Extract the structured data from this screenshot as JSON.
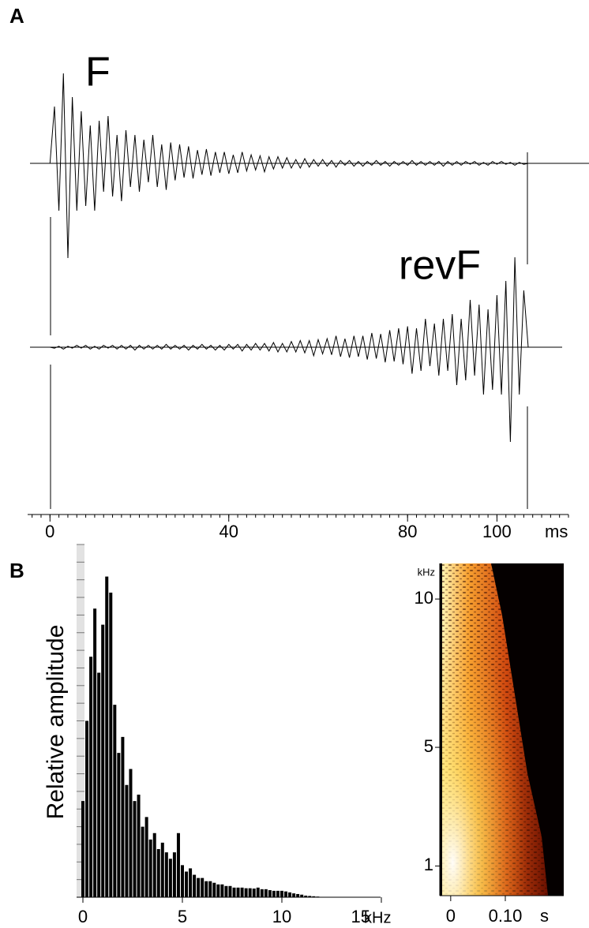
{
  "chart_data": [
    {
      "type": "waveform",
      "panel": "A",
      "x": [
        0,
        1,
        2,
        3,
        4,
        5,
        6,
        7,
        8,
        9,
        10,
        11,
        12,
        13,
        14,
        15,
        16,
        17,
        18,
        19,
        20,
        21,
        22,
        23,
        24,
        25,
        26,
        27,
        28,
        29,
        30,
        31,
        32,
        33,
        34,
        35,
        36,
        37,
        38,
        39,
        40,
        41,
        42,
        43,
        44,
        45,
        46,
        47,
        48,
        49,
        50,
        51,
        52,
        53,
        54,
        55,
        56,
        57,
        58,
        59,
        60,
        61,
        62,
        63,
        64,
        65,
        66,
        67,
        68,
        69,
        70,
        71,
        72,
        73,
        74,
        75,
        76,
        77,
        78,
        79,
        80,
        81,
        82,
        83,
        84,
        85,
        86,
        87,
        88,
        89,
        90,
        91,
        92,
        93,
        94,
        95,
        96,
        97,
        98,
        99,
        100,
        101,
        102,
        103,
        104,
        105,
        106,
        107
      ],
      "series": [
        {
          "name": "F",
          "color": "#000000",
          "values": [
            0,
            0.6,
            -0.5,
            0.95,
            -1.0,
            0.7,
            -0.5,
            0.55,
            -0.45,
            0.4,
            -0.5,
            0.45,
            -0.3,
            0.5,
            -0.35,
            0.3,
            -0.4,
            0.35,
            -0.25,
            0.3,
            -0.3,
            0.25,
            -0.2,
            0.3,
            -0.25,
            0.2,
            -0.28,
            0.22,
            -0.18,
            0.2,
            -0.15,
            0.18,
            -0.16,
            0.14,
            -0.12,
            0.15,
            -0.13,
            0.12,
            -0.1,
            0.12,
            -0.11,
            0.09,
            -0.1,
            0.12,
            -0.08,
            0.09,
            -0.07,
            0.08,
            -0.09,
            0.07,
            -0.06,
            0.07,
            -0.05,
            0.06,
            -0.05,
            0.04,
            -0.05,
            0.05,
            -0.04,
            0.04,
            -0.03,
            0.04,
            -0.03,
            0.03,
            -0.04,
            0.03,
            -0.02,
            0.03,
            -0.03,
            0.02,
            -0.03,
            0.02,
            -0.02,
            0.03,
            -0.02,
            0.02,
            -0.03,
            0.02,
            -0.02,
            0.02,
            -0.02,
            0.03,
            -0.02,
            0.02,
            -0.02,
            0.02,
            -0.02,
            0.02,
            -0.03,
            0.02,
            -0.02,
            0.02,
            -0.02,
            0.02,
            -0.01,
            0.02,
            -0.02,
            0.01,
            -0.02,
            0.02,
            -0.01,
            0.02,
            -0.01,
            0.01,
            -0.02,
            0.01,
            -0.01,
            0
          ]
        },
        {
          "name": "revF",
          "color": "#000000",
          "values": [
            0,
            -0.01,
            0.01,
            -0.02,
            0.01,
            -0.01,
            0.02,
            -0.01,
            0.02,
            -0.02,
            0.01,
            -0.02,
            0.02,
            -0.01,
            0.02,
            -0.02,
            0.02,
            -0.02,
            0.02,
            -0.03,
            0.02,
            -0.02,
            0.02,
            -0.02,
            0.02,
            -0.02,
            0.03,
            -0.02,
            0.02,
            -0.02,
            0.02,
            -0.03,
            0.02,
            -0.02,
            0.03,
            -0.02,
            0.02,
            -0.03,
            0.02,
            -0.03,
            0.03,
            -0.02,
            0.03,
            -0.04,
            0.03,
            -0.03,
            0.04,
            -0.03,
            0.04,
            -0.04,
            0.05,
            -0.05,
            0.04,
            -0.05,
            0.06,
            -0.05,
            0.07,
            -0.06,
            0.07,
            -0.09,
            0.08,
            -0.07,
            0.09,
            -0.08,
            0.12,
            -0.1,
            0.09,
            -0.11,
            0.12,
            -0.1,
            0.12,
            -0.13,
            0.15,
            -0.12,
            0.14,
            -0.16,
            0.18,
            -0.15,
            0.2,
            -0.18,
            0.22,
            -0.28,
            0.2,
            -0.25,
            0.3,
            -0.2,
            0.25,
            -0.3,
            0.3,
            -0.25,
            0.35,
            -0.4,
            0.3,
            -0.35,
            0.5,
            -0.3,
            0.45,
            -0.5,
            0.4,
            -0.45,
            0.55,
            -0.5,
            0.7,
            -1.0,
            0.95,
            -0.5,
            0.6,
            0
          ]
        }
      ],
      "xlim": [
        -5,
        116
      ],
      "xticks": [
        0,
        40,
        80,
        100
      ],
      "x_unit": "ms",
      "ylim": [
        -1,
        1
      ]
    },
    {
      "type": "spectrum",
      "panel": "B",
      "ylabel": "Relative amplitude",
      "x": [
        0,
        0.2,
        0.4,
        0.6,
        0.8,
        1.0,
        1.2,
        1.4,
        1.6,
        1.8,
        2.0,
        2.2,
        2.4,
        2.6,
        2.8,
        3.0,
        3.2,
        3.4,
        3.6,
        3.8,
        4.0,
        4.2,
        4.4,
        4.6,
        4.8,
        5.0,
        5.2,
        5.4,
        5.6,
        5.8,
        6.0,
        6.2,
        6.4,
        6.6,
        6.8,
        7.0,
        7.2,
        7.4,
        7.6,
        7.8,
        8.0,
        8.2,
        8.4,
        8.6,
        8.8,
        9.0,
        9.2,
        9.4,
        9.6,
        9.8,
        10.0,
        10.2,
        10.4,
        10.6,
        10.8,
        11.0,
        11.2,
        11.4,
        11.6,
        11.8,
        12.0
      ],
      "values": [
        0.3,
        0.55,
        0.75,
        0.9,
        0.7,
        0.85,
        1.0,
        0.95,
        0.6,
        0.45,
        0.5,
        0.35,
        0.4,
        0.3,
        0.32,
        0.22,
        0.25,
        0.18,
        0.2,
        0.15,
        0.17,
        0.14,
        0.12,
        0.14,
        0.2,
        0.1,
        0.08,
        0.09,
        0.07,
        0.06,
        0.06,
        0.05,
        0.05,
        0.045,
        0.04,
        0.04,
        0.035,
        0.035,
        0.03,
        0.03,
        0.03,
        0.028,
        0.028,
        0.027,
        0.03,
        0.025,
        0.025,
        0.022,
        0.02,
        0.02,
        0.02,
        0.018,
        0.015,
        0.012,
        0.01,
        0.008,
        0.005,
        0.004,
        0.003,
        0.002,
        0.001
      ],
      "color": "#000000",
      "xlim": [
        0,
        15
      ],
      "xticks": [
        0,
        5,
        10,
        15
      ],
      "x_unit": "kHz",
      "ylim": [
        0,
        1.1
      ]
    },
    {
      "type": "spectrogram",
      "xlim": [
        -0.02,
        0.207
      ],
      "xticks": [
        0,
        {
          "value": 0.1,
          "label": "0.10"
        }
      ],
      "x_unit": "s",
      "ylim": [
        0,
        11.2
      ],
      "yticks": [
        1,
        5,
        10
      ],
      "y_unit": "kHz"
    }
  ]
}
